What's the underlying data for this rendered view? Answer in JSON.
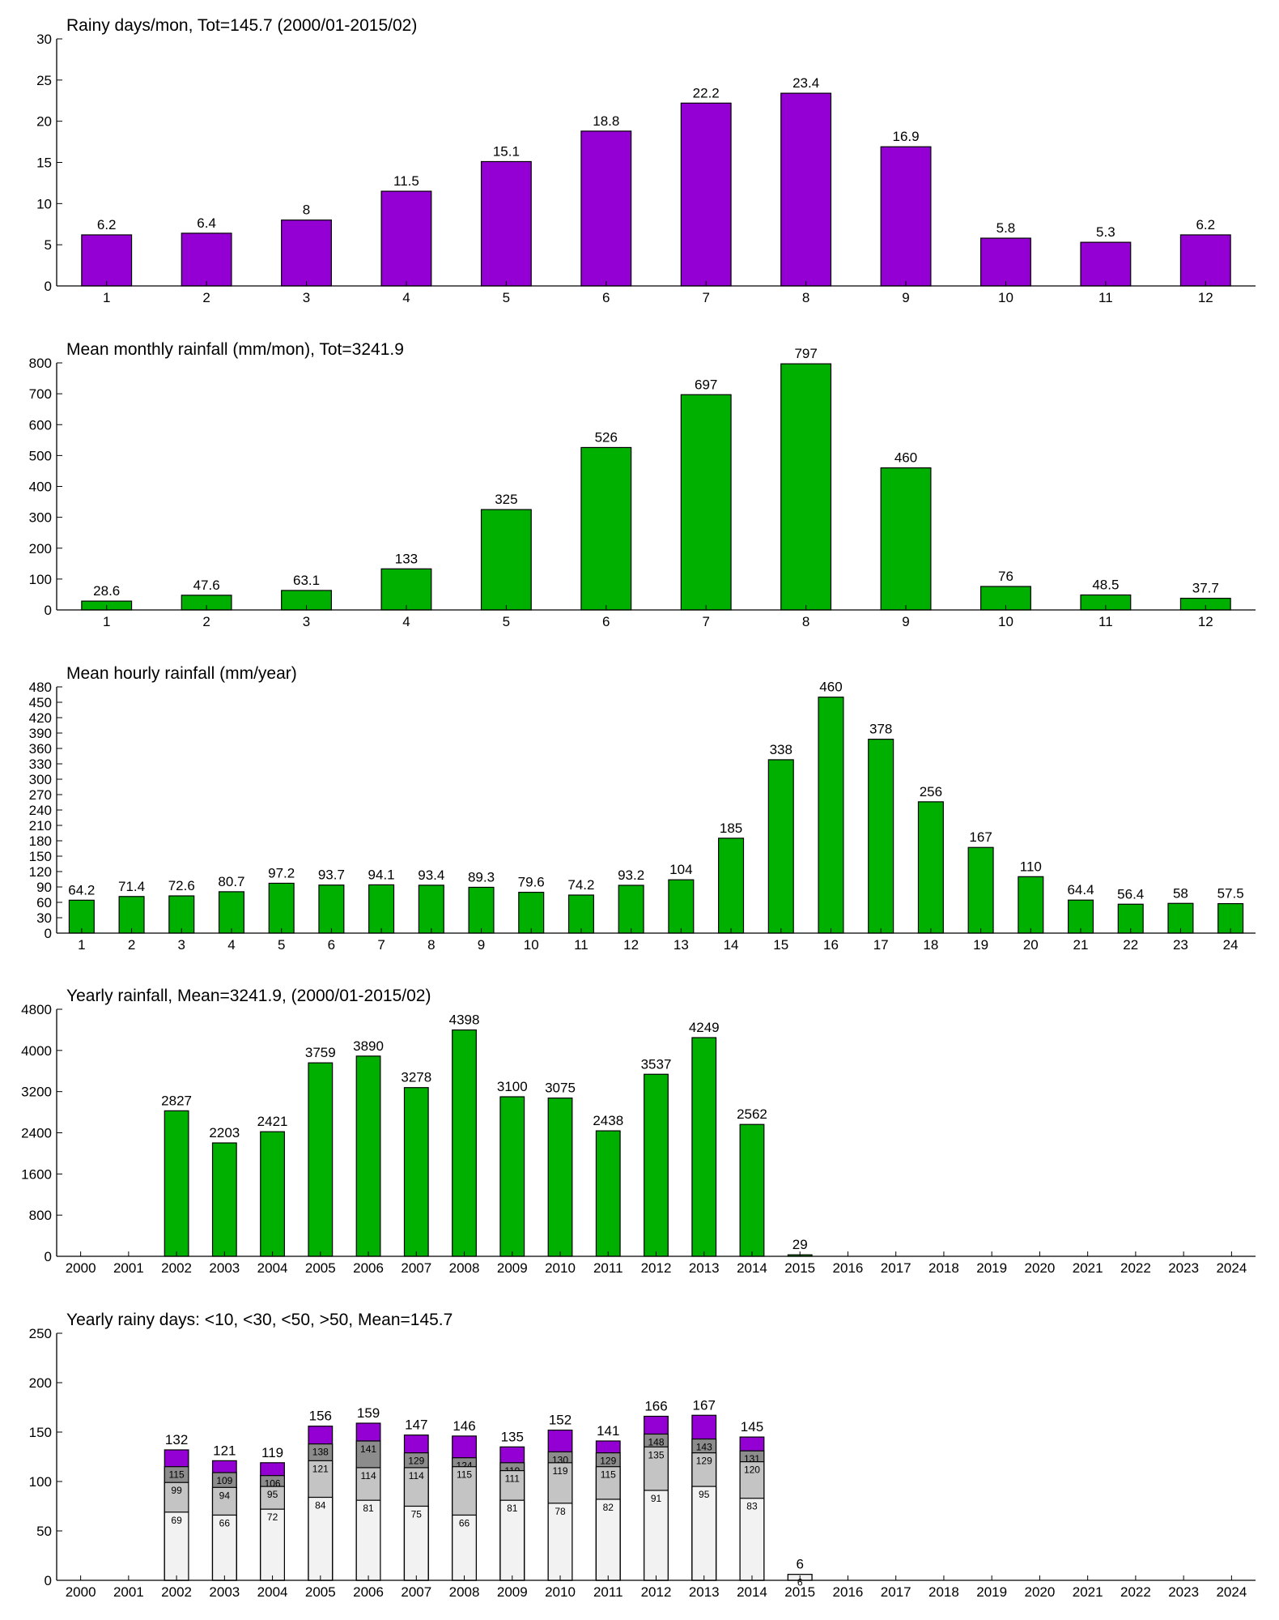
{
  "chart_data": [
    {
      "type": "bar",
      "title": "Rainy days/mon, Tot=145.7 (2000/01-2015/02)",
      "categories": [
        1,
        2,
        3,
        4,
        5,
        6,
        7,
        8,
        9,
        10,
        11,
        12
      ],
      "values": [
        6.2,
        6.4,
        8,
        11.5,
        15.1,
        18.8,
        22.2,
        23.4,
        16.9,
        5.8,
        5.3,
        6.2
      ],
      "color": "#9400d3",
      "ylim": [
        0,
        30
      ],
      "yticks": [
        0,
        5,
        10,
        15,
        20,
        25,
        30
      ],
      "grid": false
    },
    {
      "type": "bar",
      "title": "Mean monthly rainfall (mm/mon), Tot=3241.9",
      "categories": [
        1,
        2,
        3,
        4,
        5,
        6,
        7,
        8,
        9,
        10,
        11,
        12
      ],
      "values": [
        28.6,
        47.6,
        63.1,
        133,
        325,
        526,
        697,
        797,
        460,
        76,
        48.5,
        37.7
      ],
      "color": "#00b000",
      "ylim": [
        0,
        800
      ],
      "yticks": [
        0,
        100,
        200,
        300,
        400,
        500,
        600,
        700,
        800
      ],
      "grid": false
    },
    {
      "type": "bar",
      "title": "Mean hourly rainfall (mm/year)",
      "categories": [
        1,
        2,
        3,
        4,
        5,
        6,
        7,
        8,
        9,
        10,
        11,
        12,
        13,
        14,
        15,
        16,
        17,
        18,
        19,
        20,
        21,
        22,
        23,
        24
      ],
      "values": [
        64.2,
        71.4,
        72.6,
        80.7,
        97.2,
        93.7,
        94.1,
        93.4,
        89.3,
        79.6,
        74.2,
        93.2,
        104,
        185,
        338,
        460,
        378,
        256,
        167,
        110,
        64.4,
        56.4,
        58,
        57.5
      ],
      "color": "#00b000",
      "ylim": [
        0,
        480
      ],
      "yticks": [
        0,
        30,
        60,
        90,
        120,
        150,
        180,
        210,
        240,
        270,
        300,
        330,
        360,
        390,
        420,
        450,
        480
      ],
      "grid": false
    },
    {
      "type": "bar",
      "title": "Yearly rainfall, Mean=3241.9, (2000/01-2015/02)",
      "categories": [
        2000,
        2001,
        2002,
        2003,
        2004,
        2005,
        2006,
        2007,
        2008,
        2009,
        2010,
        2011,
        2012,
        2013,
        2014,
        2015,
        2016,
        2017,
        2018,
        2019,
        2020,
        2021,
        2022,
        2023,
        2024
      ],
      "values": [
        null,
        null,
        2827,
        2203,
        2421,
        3759,
        3890,
        3278,
        4398,
        3100,
        3075,
        2438,
        3537,
        4249,
        2562,
        29,
        null,
        null,
        null,
        null,
        null,
        null,
        null,
        null,
        null
      ],
      "color": "#00b000",
      "ylim": [
        0,
        4800
      ],
      "yticks": [
        0,
        800,
        1600,
        2400,
        3200,
        4000,
        4800
      ],
      "grid": false
    },
    {
      "type": "bar",
      "title": "Yearly rainy days: <10, <30, <50, >50, Mean=145.7",
      "categories": [
        2000,
        2001,
        2002,
        2003,
        2004,
        2005,
        2006,
        2007,
        2008,
        2009,
        2010,
        2011,
        2012,
        2013,
        2014,
        2015,
        2016,
        2017,
        2018,
        2019,
        2020,
        2021,
        2022,
        2023,
        2024
      ],
      "series": [
        {
          "color": "#9400d3",
          "values": [
            null,
            null,
            132,
            121,
            119,
            156,
            159,
            147,
            146,
            135,
            152,
            141,
            166,
            167,
            145,
            6,
            null,
            null,
            null,
            null,
            null,
            null,
            null,
            null,
            null
          ]
        },
        {
          "color": "#8c8c8c",
          "values": [
            null,
            null,
            115,
            109,
            106,
            138,
            141,
            129,
            124,
            119,
            130,
            129,
            148,
            143,
            131,
            null,
            null,
            null,
            null,
            null,
            null,
            null,
            null,
            null,
            null
          ]
        },
        {
          "color": "#c4c4c4",
          "values": [
            null,
            null,
            99,
            94,
            95,
            121,
            114,
            114,
            115,
            111,
            119,
            115,
            135,
            129,
            120,
            null,
            null,
            null,
            null,
            null,
            null,
            null,
            null,
            null,
            null
          ]
        },
        {
          "color": "#f2f2f2",
          "values": [
            null,
            null,
            69,
            66,
            72,
            84,
            81,
            75,
            66,
            81,
            78,
            82,
            91,
            95,
            83,
            6,
            null,
            null,
            null,
            null,
            null,
            null,
            null,
            null,
            null
          ]
        }
      ],
      "ylim": [
        0,
        250
      ],
      "yticks": [
        0,
        50,
        100,
        150,
        200,
        250
      ],
      "grid": false
    }
  ]
}
